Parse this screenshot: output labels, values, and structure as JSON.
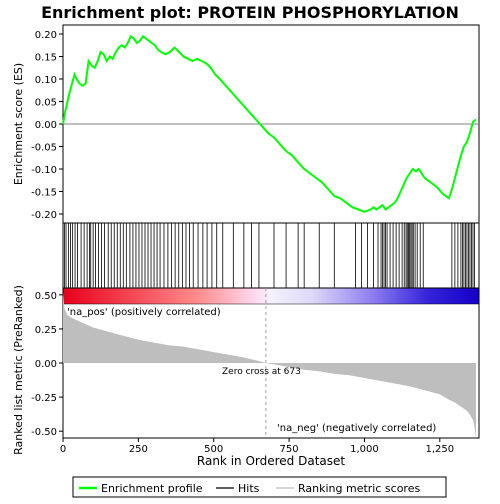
{
  "chart_data": {
    "type": "line",
    "title": "Enrichment plot: PROTEIN PHOSPHORYLATION",
    "xlabel": "Rank in Ordered Dataset",
    "top_panel": {
      "ylabel": "Enrichment score (ES)",
      "ylim": [
        -0.22,
        0.22
      ],
      "yticks": [
        -0.2,
        -0.15,
        -0.1,
        -0.05,
        0.0,
        0.05,
        0.1,
        0.15,
        0.2
      ],
      "ytick_labels": [
        "-0.20",
        "-0.15",
        "-0.10",
        "-0.05",
        "0.00",
        "0.05",
        "0.10",
        "0.15",
        "0.20"
      ],
      "series": [
        {
          "name": "Enrichment profile",
          "color": "#00ff00",
          "x": [
            0,
            8,
            15,
            22,
            30,
            38,
            45,
            55,
            65,
            75,
            85,
            95,
            105,
            115,
            125,
            135,
            145,
            155,
            165,
            175,
            185,
            195,
            205,
            215,
            225,
            235,
            245,
            255,
            265,
            275,
            285,
            295,
            305,
            315,
            325,
            340,
            355,
            370,
            385,
            400,
            415,
            430,
            445,
            460,
            475,
            490,
            505,
            520,
            540,
            560,
            580,
            600,
            620,
            640,
            660,
            680,
            700,
            720,
            740,
            760,
            780,
            800,
            820,
            840,
            860,
            880,
            900,
            920,
            940,
            960,
            980,
            1000,
            1020,
            1030,
            1040,
            1050,
            1060,
            1070,
            1080,
            1090,
            1100,
            1110,
            1120,
            1130,
            1140,
            1150,
            1160,
            1170,
            1180,
            1190,
            1200,
            1220,
            1240,
            1260,
            1280,
            1290,
            1300,
            1310,
            1320,
            1330,
            1340,
            1350,
            1360,
            1370
          ],
          "y": [
            0.0,
            0.03,
            0.05,
            0.07,
            0.09,
            0.11,
            0.1,
            0.09,
            0.085,
            0.09,
            0.14,
            0.13,
            0.125,
            0.14,
            0.16,
            0.155,
            0.14,
            0.15,
            0.145,
            0.16,
            0.17,
            0.175,
            0.17,
            0.18,
            0.195,
            0.19,
            0.18,
            0.185,
            0.195,
            0.19,
            0.185,
            0.18,
            0.175,
            0.165,
            0.16,
            0.155,
            0.16,
            0.17,
            0.16,
            0.15,
            0.145,
            0.14,
            0.145,
            0.14,
            0.135,
            0.125,
            0.11,
            0.1,
            0.085,
            0.07,
            0.055,
            0.04,
            0.025,
            0.01,
            -0.005,
            -0.02,
            -0.03,
            -0.045,
            -0.06,
            -0.07,
            -0.085,
            -0.1,
            -0.11,
            -0.12,
            -0.13,
            -0.145,
            -0.16,
            -0.165,
            -0.175,
            -0.185,
            -0.19,
            -0.195,
            -0.19,
            -0.185,
            -0.19,
            -0.185,
            -0.18,
            -0.19,
            -0.185,
            -0.18,
            -0.175,
            -0.165,
            -0.15,
            -0.135,
            -0.12,
            -0.11,
            -0.1,
            -0.105,
            -0.1,
            -0.11,
            -0.12,
            -0.13,
            -0.14,
            -0.155,
            -0.165,
            -0.145,
            -0.12,
            -0.095,
            -0.07,
            -0.05,
            -0.04,
            -0.02,
            0.005,
            0.01
          ]
        }
      ],
      "hits_label": "Hits",
      "hits_x": [
        5,
        10,
        18,
        25,
        32,
        40,
        48,
        60,
        70,
        80,
        88,
        92,
        100,
        108,
        118,
        128,
        138,
        150,
        160,
        170,
        180,
        190,
        200,
        210,
        222,
        232,
        242,
        252,
        262,
        272,
        282,
        292,
        302,
        312,
        322,
        335,
        348,
        360,
        372,
        384,
        396,
        408,
        420,
        432,
        448,
        464,
        478,
        494,
        510,
        530,
        565,
        600,
        625,
        650,
        700,
        740,
        780,
        800,
        850,
        900,
        970,
        990,
        1010,
        1030,
        1045,
        1055,
        1060,
        1065,
        1070,
        1075,
        1085,
        1095,
        1105,
        1115,
        1125,
        1132,
        1138,
        1142,
        1146,
        1150,
        1154,
        1158,
        1162,
        1168,
        1175,
        1185,
        1195,
        1290,
        1300,
        1310,
        1320,
        1325,
        1330,
        1335,
        1340,
        1345,
        1350,
        1355,
        1360,
        1365
      ]
    },
    "bottom_panel": {
      "ylabel": "Ranked list metric (PreRanked)",
      "ylim": [
        -0.55,
        0.55
      ],
      "yticks": [
        -0.5,
        -0.25,
        0.0,
        0.25,
        0.5
      ],
      "ytick_labels": [
        "-0.50",
        "-0.25",
        "0.00",
        "0.25",
        "0.50"
      ],
      "series_name": "Ranking metric scores",
      "metric_x": [
        0,
        5,
        15,
        30,
        60,
        100,
        150,
        200,
        250,
        300,
        350,
        400,
        450,
        500,
        550,
        600,
        650,
        673,
        700,
        750,
        800,
        850,
        900,
        950,
        1000,
        1050,
        1100,
        1150,
        1200,
        1250,
        1280,
        1300,
        1320,
        1340,
        1350,
        1360,
        1365,
        1370
      ],
      "metric_y": [
        0.52,
        0.4,
        0.35,
        0.33,
        0.3,
        0.26,
        0.23,
        0.2,
        0.17,
        0.15,
        0.13,
        0.12,
        0.1,
        0.08,
        0.06,
        0.04,
        0.015,
        0.0,
        -0.01,
        -0.03,
        -0.05,
        -0.06,
        -0.08,
        -0.09,
        -0.11,
        -0.13,
        -0.15,
        -0.17,
        -0.2,
        -0.23,
        -0.27,
        -0.29,
        -0.32,
        -0.35,
        -0.38,
        -0.42,
        -0.47,
        -0.55
      ],
      "annotations": {
        "pos": "'na_pos' (positively correlated)",
        "neg": "'na_neg' (negatively correlated)",
        "zero_cross": "Zero cross at 673"
      },
      "zero_cross_x": 673
    },
    "xlim": [
      0,
      1380
    ],
    "xticks": [
      0,
      250,
      500,
      750,
      1000,
      1250
    ],
    "xtick_labels": [
      "0",
      "250",
      "500",
      "750",
      "1,000",
      "1,250"
    ],
    "legend": {
      "placement": "bottom",
      "items": [
        {
          "label": "Enrichment profile",
          "color": "#00ff00"
        },
        {
          "label": "Hits",
          "color": "#000000"
        },
        {
          "label": "Ranking metric scores",
          "color": "#bebebe"
        }
      ]
    },
    "colors": {
      "line": "#00ff00",
      "metric_fill": "#bebebe",
      "pos_text": "#cc0000",
      "neg_text": "#0000cc"
    }
  }
}
